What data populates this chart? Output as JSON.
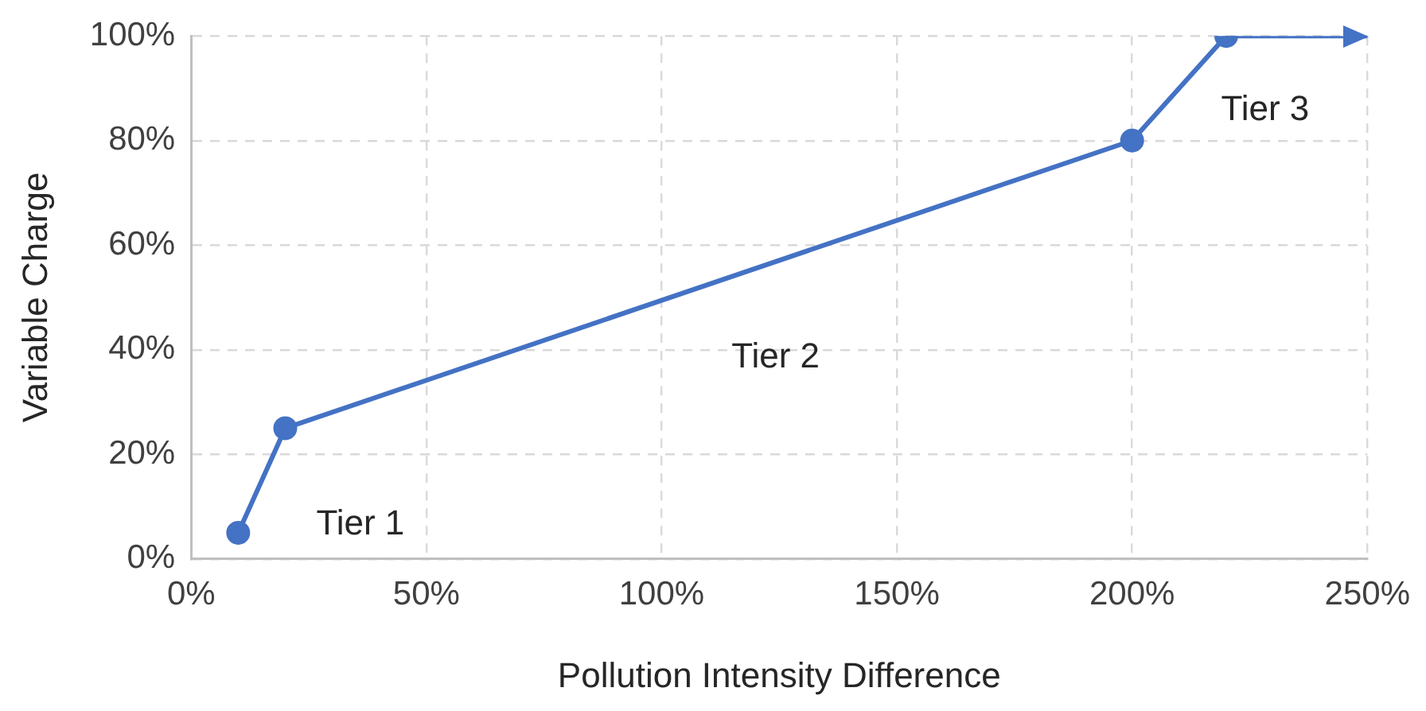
{
  "chart_data": {
    "type": "line",
    "xlabel": "Pollution Intensity Difference",
    "ylabel": "Variable Charge",
    "x": [
      10,
      20,
      200,
      220,
      250
    ],
    "series": [
      {
        "color": "#4472c4",
        "values": [
          5,
          25,
          80,
          100,
          100
        ]
      }
    ],
    "xlim": [
      0,
      250
    ],
    "xticks": [
      {
        "value": 0,
        "label": "0%"
      },
      {
        "value": 50,
        "label": "50%"
      },
      {
        "value": 100,
        "label": "100%"
      },
      {
        "value": 150,
        "label": "150%"
      },
      {
        "value": 200,
        "label": "200%"
      },
      {
        "value": 250,
        "label": "250%"
      }
    ],
    "ylim": [
      0,
      100
    ],
    "yticks": [
      {
        "value": 0,
        "label": "0%"
      },
      {
        "value": 20,
        "label": "20%"
      },
      {
        "value": 40,
        "label": "40%"
      },
      {
        "value": 60,
        "label": "60%"
      },
      {
        "value": 80,
        "label": "80%"
      },
      {
        "value": 100,
        "label": "100%"
      }
    ],
    "grid": true,
    "marker": "circle",
    "line_style": "solid",
    "legend": false,
    "annotations": [
      "Tier 1",
      "Tier 2",
      "Tier 3"
    ]
  }
}
